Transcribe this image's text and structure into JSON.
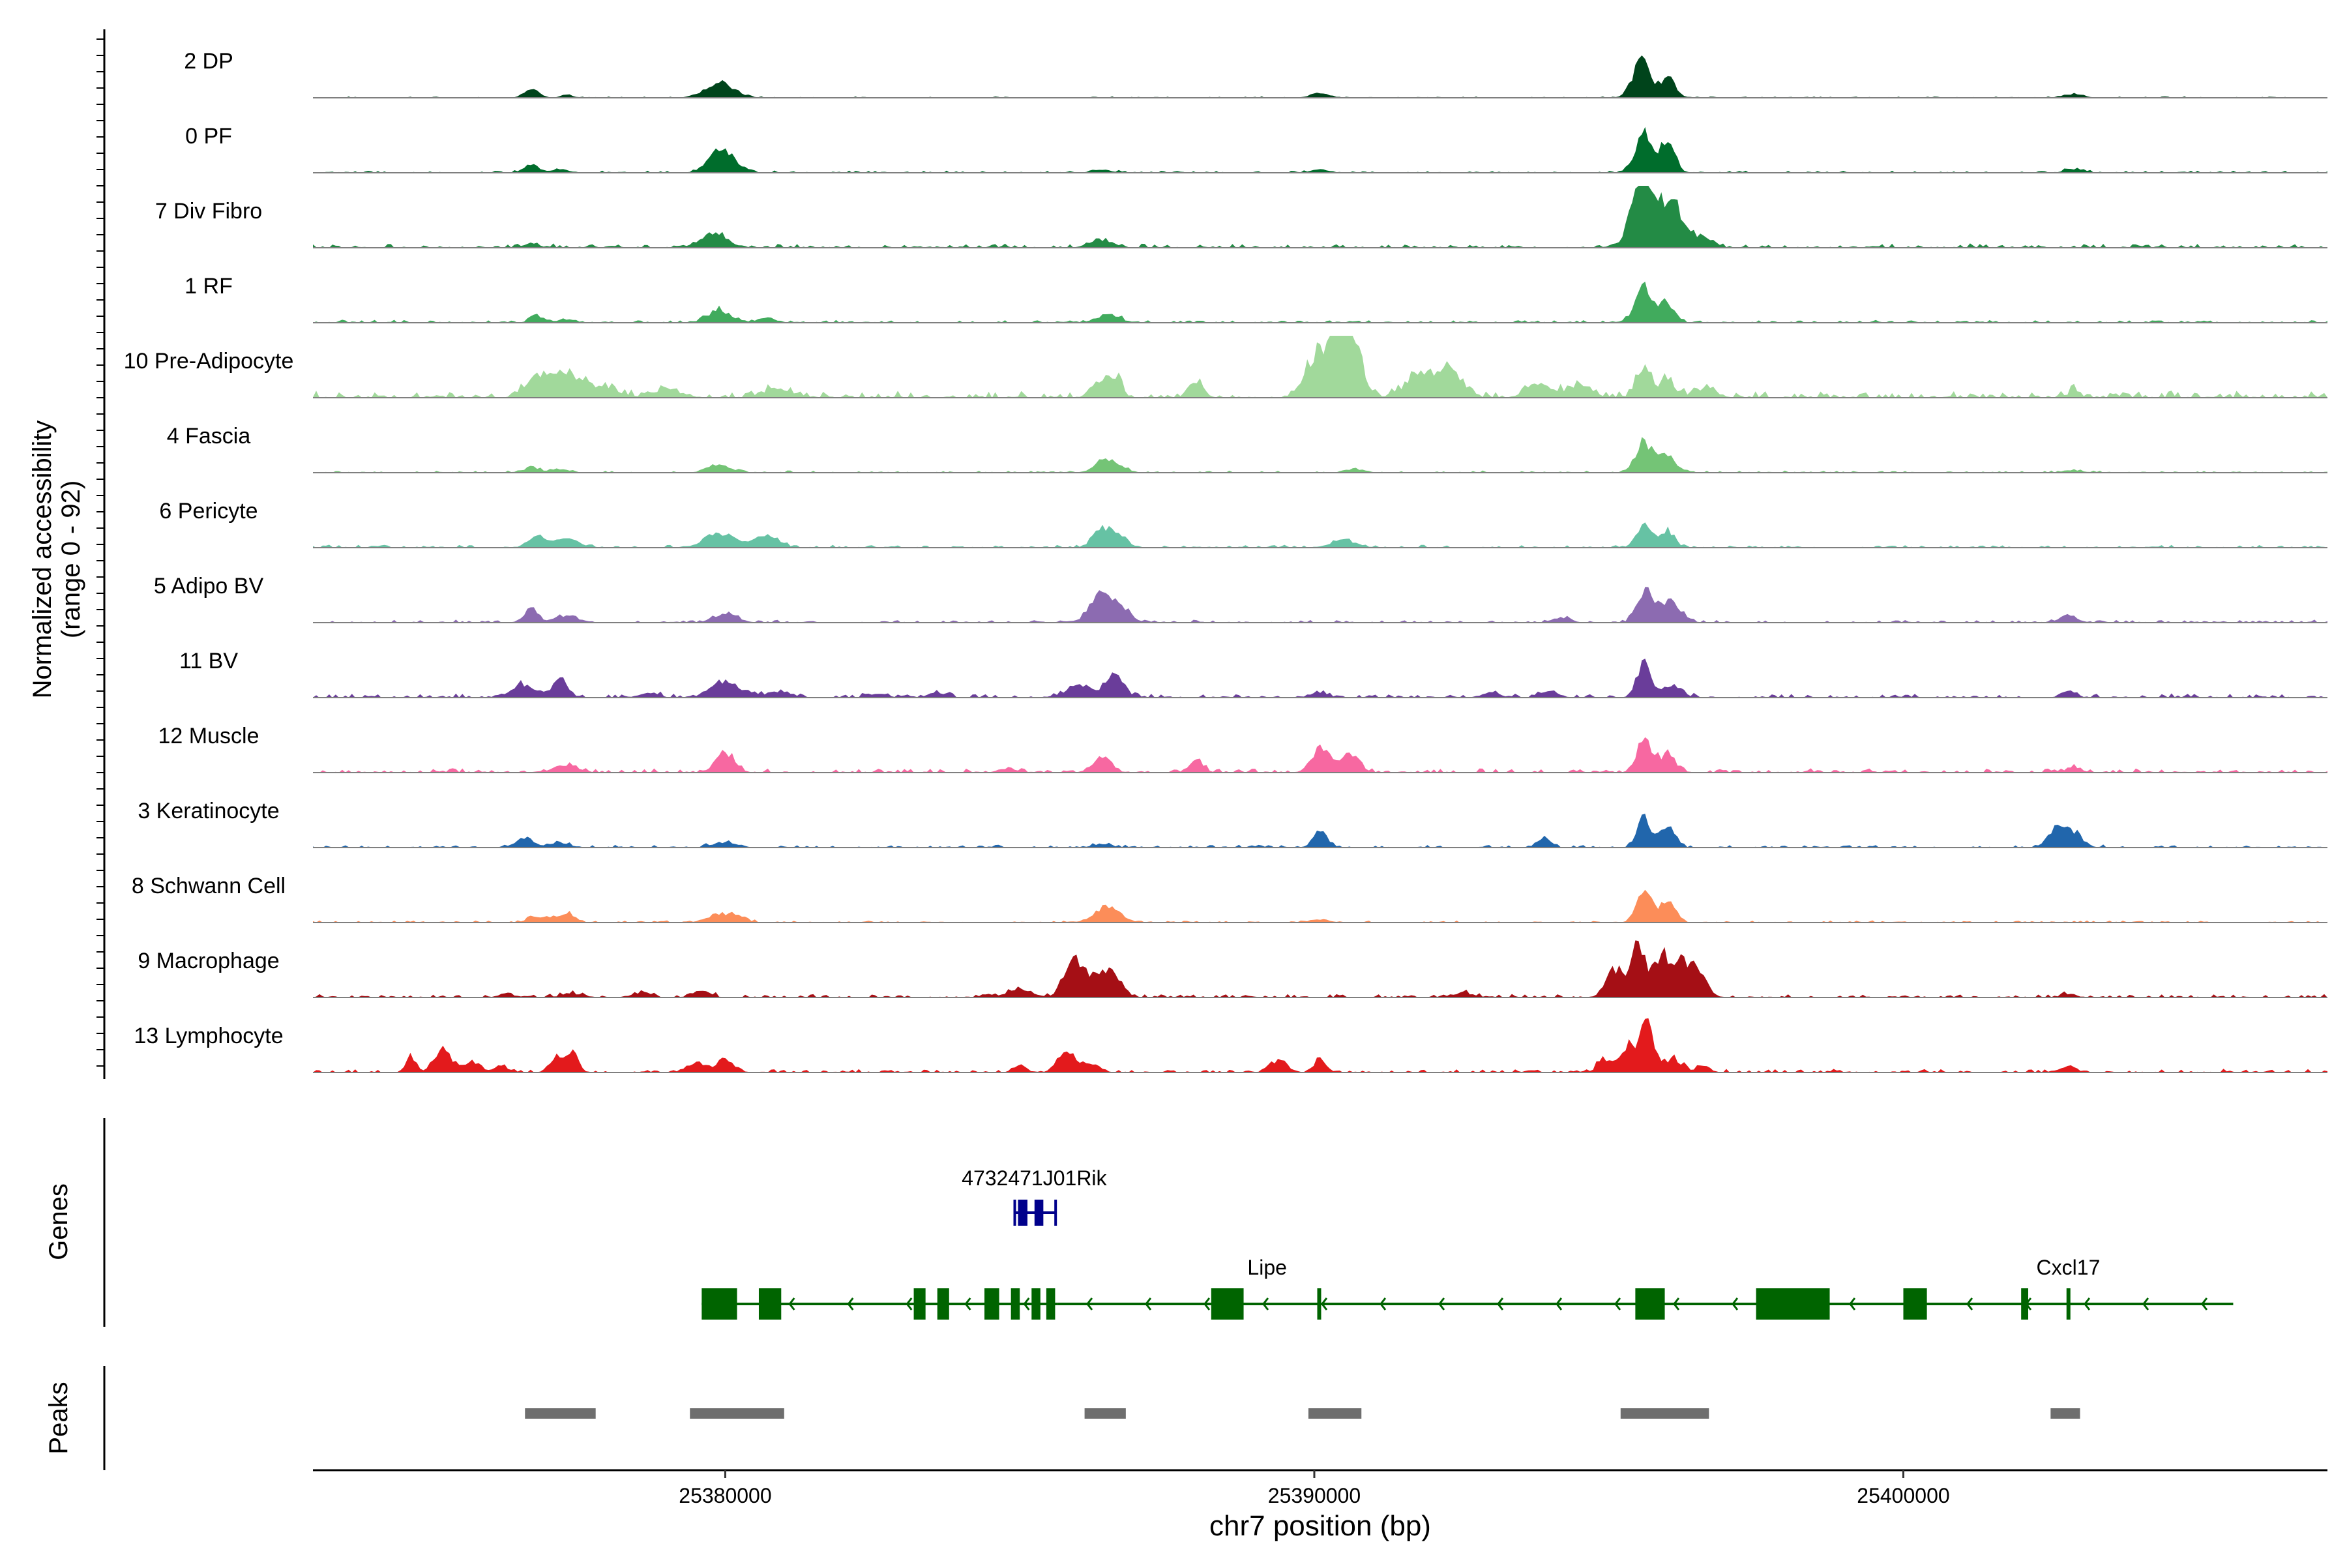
{
  "chart_data": {
    "type": "coverage-track",
    "chromosome": "chr7",
    "x_range": [
      25373000,
      25407200
    ],
    "xlabel": "chr7 position (bp)",
    "x_ticks": [
      25380000,
      25390000,
      25400000
    ],
    "x_tick_labels": [
      "25380000",
      "25390000",
      "25400000"
    ],
    "ylabel_line1": "Normalized accessibility",
    "ylabel_line2": "(range 0 - 92)",
    "y_range": [
      0,
      92
    ],
    "genes_label": "Genes",
    "peaks_label": "Peaks",
    "tracks": [
      {
        "name": "2 DP",
        "color": "#00441b",
        "noise": 0.02,
        "peaks": [
          [
            25376700,
            120,
            0.15
          ],
          [
            25377300,
            100,
            0.05
          ],
          [
            25379900,
            250,
            0.22
          ],
          [
            25390100,
            150,
            0.08
          ],
          [
            25395550,
            150,
            0.55
          ],
          [
            25396000,
            130,
            0.3
          ],
          [
            25402900,
            150,
            0.06
          ]
        ]
      },
      {
        "name": "0 PF",
        "color": "#006d2c",
        "noise": 0.03,
        "peaks": [
          [
            25376700,
            120,
            0.12
          ],
          [
            25377200,
            150,
            0.05
          ],
          [
            25379950,
            220,
            0.35
          ],
          [
            25386400,
            150,
            0.05
          ],
          [
            25390100,
            150,
            0.05
          ],
          [
            25395600,
            150,
            0.6
          ],
          [
            25396000,
            120,
            0.45
          ],
          [
            25402900,
            150,
            0.06
          ]
        ]
      },
      {
        "name": "7 Div Fibro",
        "color": "#238b45",
        "noise": 0.06,
        "peaks": [
          [
            25376700,
            150,
            0.06
          ],
          [
            25379800,
            220,
            0.22
          ],
          [
            25386400,
            200,
            0.12
          ],
          [
            25395500,
            150,
            0.65
          ],
          [
            25395700,
            200,
            0.75
          ],
          [
            25396100,
            150,
            0.6
          ],
          [
            25396500,
            200,
            0.18
          ]
        ]
      },
      {
        "name": "1 RF",
        "color": "#41ab5d",
        "noise": 0.04,
        "peaks": [
          [
            25376800,
            120,
            0.1
          ],
          [
            25377300,
            150,
            0.05
          ],
          [
            25379900,
            200,
            0.18
          ],
          [
            25380700,
            150,
            0.08
          ],
          [
            25386500,
            200,
            0.12
          ],
          [
            25395600,
            150,
            0.55
          ],
          [
            25396000,
            120,
            0.3
          ]
        ]
      },
      {
        "name": "10 Pre-Adipocyte",
        "color": "#a1d99b",
        "noise": 0.1,
        "peaks": [
          [
            25376800,
            200,
            0.25
          ],
          [
            25377300,
            300,
            0.38
          ],
          [
            25378000,
            200,
            0.12
          ],
          [
            25379000,
            250,
            0.12
          ],
          [
            25380900,
            250,
            0.14
          ],
          [
            25386300,
            120,
            0.2
          ],
          [
            25386600,
            120,
            0.3
          ],
          [
            25388000,
            120,
            0.25
          ],
          [
            25390100,
            220,
            0.7
          ],
          [
            25390500,
            180,
            0.85
          ],
          [
            25390700,
            150,
            0.5
          ],
          [
            25391800,
            250,
            0.35
          ],
          [
            25392300,
            200,
            0.45
          ],
          [
            25393800,
            200,
            0.2
          ],
          [
            25394500,
            200,
            0.2
          ],
          [
            25395600,
            130,
            0.45
          ],
          [
            25396000,
            100,
            0.3
          ],
          [
            25396600,
            200,
            0.14
          ],
          [
            25402900,
            100,
            0.1
          ]
        ]
      },
      {
        "name": "4 Fascia",
        "color": "#74c476",
        "noise": 0.03,
        "peaks": [
          [
            25376700,
            120,
            0.08
          ],
          [
            25377200,
            150,
            0.06
          ],
          [
            25379900,
            200,
            0.12
          ],
          [
            25386500,
            200,
            0.2
          ],
          [
            25390700,
            150,
            0.05
          ],
          [
            25395600,
            150,
            0.45
          ],
          [
            25396000,
            130,
            0.3
          ],
          [
            25402900,
            150,
            0.04
          ]
        ]
      },
      {
        "name": "6 Pericyte",
        "color": "#66c2a4",
        "noise": 0.04,
        "peaks": [
          [
            25376800,
            150,
            0.15
          ],
          [
            25377300,
            200,
            0.15
          ],
          [
            25379900,
            250,
            0.22
          ],
          [
            25380700,
            200,
            0.2
          ],
          [
            25386400,
            150,
            0.3
          ],
          [
            25386700,
            150,
            0.15
          ],
          [
            25390500,
            200,
            0.12
          ],
          [
            25395600,
            130,
            0.35
          ],
          [
            25396000,
            120,
            0.25
          ]
        ]
      },
      {
        "name": "5 Adipo BV",
        "color": "#8c6bb1",
        "noise": 0.04,
        "peaks": [
          [
            25376700,
            120,
            0.2
          ],
          [
            25377300,
            200,
            0.1
          ],
          [
            25380000,
            200,
            0.14
          ],
          [
            25386300,
            150,
            0.3
          ],
          [
            25386600,
            200,
            0.35
          ],
          [
            25394200,
            150,
            0.08
          ],
          [
            25395600,
            130,
            0.45
          ],
          [
            25396000,
            200,
            0.32
          ],
          [
            25402800,
            150,
            0.12
          ]
        ]
      },
      {
        "name": "11 BV",
        "color": "#6a3d9a",
        "noise": 0.06,
        "peaks": [
          [
            25376600,
            200,
            0.2
          ],
          [
            25377200,
            120,
            0.35
          ],
          [
            25378700,
            150,
            0.08
          ],
          [
            25379900,
            200,
            0.2
          ],
          [
            25380200,
            200,
            0.12
          ],
          [
            25380900,
            200,
            0.1
          ],
          [
            25382600,
            150,
            0.06
          ],
          [
            25383600,
            150,
            0.08
          ],
          [
            25386000,
            200,
            0.2
          ],
          [
            25386600,
            150,
            0.4
          ],
          [
            25390100,
            120,
            0.08
          ],
          [
            25393000,
            150,
            0.08
          ],
          [
            25394000,
            150,
            0.1
          ],
          [
            25395600,
            120,
            0.55
          ],
          [
            25396100,
            150,
            0.18
          ],
          [
            25402800,
            120,
            0.1
          ]
        ]
      },
      {
        "name": "12 Muscle",
        "color": "#f768a1",
        "noise": 0.06,
        "peaks": [
          [
            25377300,
            200,
            0.12
          ],
          [
            25380000,
            150,
            0.3
          ],
          [
            25384800,
            150,
            0.06
          ],
          [
            25386400,
            150,
            0.25
          ],
          [
            25388000,
            120,
            0.2
          ],
          [
            25390100,
            150,
            0.38
          ],
          [
            25390600,
            150,
            0.3
          ],
          [
            25395600,
            130,
            0.5
          ],
          [
            25396000,
            130,
            0.3
          ],
          [
            25402900,
            120,
            0.08
          ]
        ]
      },
      {
        "name": "3 Keratinocyte",
        "color": "#2166ac",
        "noise": 0.04,
        "peaks": [
          [
            25376600,
            150,
            0.15
          ],
          [
            25377200,
            150,
            0.08
          ],
          [
            25380000,
            200,
            0.08
          ],
          [
            25386400,
            150,
            0.06
          ],
          [
            25390100,
            120,
            0.25
          ],
          [
            25393900,
            120,
            0.14
          ],
          [
            25395600,
            120,
            0.45
          ],
          [
            25396000,
            120,
            0.32
          ],
          [
            25402600,
            150,
            0.3
          ],
          [
            25402900,
            150,
            0.2
          ]
        ]
      },
      {
        "name": "8 Schwann Cell",
        "color": "#fc8d59",
        "noise": 0.03,
        "peaks": [
          [
            25376800,
            150,
            0.1
          ],
          [
            25377300,
            150,
            0.15
          ],
          [
            25379900,
            200,
            0.12
          ],
          [
            25380200,
            150,
            0.08
          ],
          [
            25386500,
            200,
            0.25
          ],
          [
            25390100,
            150,
            0.05
          ],
          [
            25395600,
            130,
            0.45
          ],
          [
            25396000,
            130,
            0.35
          ]
        ]
      },
      {
        "name": "9 Macrophage",
        "color": "#a50f15",
        "noise": 0.05,
        "peaks": [
          [
            25376300,
            150,
            0.05
          ],
          [
            25377400,
            200,
            0.05
          ],
          [
            25378600,
            150,
            0.08
          ],
          [
            25379600,
            150,
            0.1
          ],
          [
            25385000,
            200,
            0.14
          ],
          [
            25385900,
            150,
            0.62
          ],
          [
            25386300,
            200,
            0.28
          ],
          [
            25386600,
            150,
            0.3
          ],
          [
            25392500,
            200,
            0.06
          ],
          [
            25395100,
            150,
            0.4
          ],
          [
            25395500,
            130,
            0.8
          ],
          [
            25395900,
            130,
            0.6
          ],
          [
            25396200,
            130,
            0.5
          ],
          [
            25396500,
            150,
            0.42
          ],
          [
            25402800,
            120,
            0.06
          ]
        ]
      },
      {
        "name": "13 Lymphocyte",
        "color": "#e31a1c",
        "noise": 0.05,
        "peaks": [
          [
            25374650,
            80,
            0.25
          ],
          [
            25375200,
            150,
            0.32
          ],
          [
            25375700,
            150,
            0.15
          ],
          [
            25376200,
            100,
            0.08
          ],
          [
            25377100,
            100,
            0.22
          ],
          [
            25377400,
            100,
            0.3
          ],
          [
            25379500,
            150,
            0.14
          ],
          [
            25380000,
            150,
            0.2
          ],
          [
            25385000,
            100,
            0.12
          ],
          [
            25385800,
            150,
            0.3
          ],
          [
            25386200,
            150,
            0.12
          ],
          [
            25389400,
            150,
            0.15
          ],
          [
            25390100,
            80,
            0.25
          ],
          [
            25394900,
            100,
            0.18
          ],
          [
            25395300,
            150,
            0.4
          ],
          [
            25395650,
            120,
            0.75
          ],
          [
            25396100,
            150,
            0.2
          ],
          [
            25396600,
            100,
            0.12
          ],
          [
            25402800,
            120,
            0.1
          ]
        ]
      }
    ],
    "genes": [
      {
        "name": "4732471J01Rik",
        "color": "#00008b",
        "start": 25384970,
        "end": 25385520,
        "exons": [
          [
            25384970,
            25385130
          ],
          [
            25385250,
            25385400
          ]
        ],
        "strand": "+"
      },
      {
        "name": "Lipe",
        "color": "#006400",
        "start": 25379600,
        "end": 25385650,
        "exons": [
          [
            25379600,
            25380200
          ],
          [
            25380570,
            25380950
          ],
          [
            25383200,
            25383400
          ],
          [
            25383600,
            25383800
          ],
          [
            25384400,
            25384650
          ],
          [
            25384850,
            25385000
          ],
          [
            25385200,
            25385350
          ],
          [
            25385450,
            25385600
          ]
        ],
        "strand": "-"
      },
      {
        "name": "Lipe",
        "color": "#006400",
        "start": 25385650,
        "end": 25405600,
        "label_pos": 25389200,
        "exons": [
          [
            25388250,
            25388800
          ],
          [
            25390050,
            25390100
          ],
          [
            25395450,
            25395950
          ],
          [
            25397500,
            25398750
          ],
          [
            25400000,
            25400400
          ],
          [
            25402000,
            25402120
          ],
          [
            25402770,
            25402830
          ]
        ],
        "strand": "-"
      },
      {
        "name": "Cxcl17",
        "color": "#006400",
        "label_pos": 25402800,
        "label_only": true
      }
    ],
    "peaks": [
      [
        25376600,
        25377800
      ],
      [
        25379400,
        25381000
      ],
      [
        25386100,
        25386800
      ],
      [
        25389900,
        25390800
      ],
      [
        25395200,
        25396700
      ],
      [
        25402500,
        25403000
      ]
    ]
  }
}
